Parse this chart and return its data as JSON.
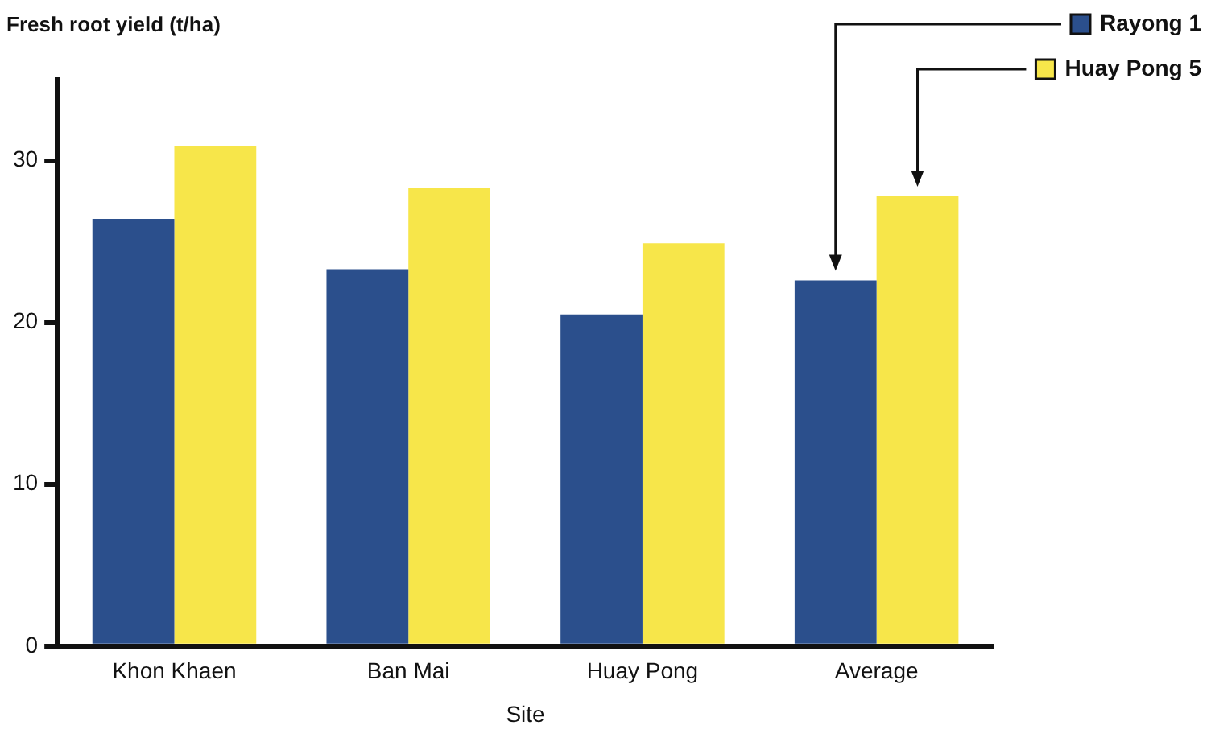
{
  "chart_data": {
    "type": "bar",
    "xlabel": "Site",
    "ylabel": "Fresh root yield (t/ha)",
    "categories": [
      "Khon Khaen",
      "Ban Mai",
      "Huay Pong",
      "Average"
    ],
    "series": [
      {
        "name": "Rayong 1",
        "color": "#2b4f8c",
        "values": [
          26.4,
          23.3,
          20.5,
          22.6
        ]
      },
      {
        "name": "Huay Pong 5",
        "color": "#f7e64a",
        "values": [
          30.9,
          28.3,
          24.9,
          27.8
        ]
      }
    ],
    "ylim": [
      0,
      35
    ],
    "yticks": [
      0,
      10,
      20,
      30
    ],
    "grid": false,
    "legend": "top right"
  }
}
